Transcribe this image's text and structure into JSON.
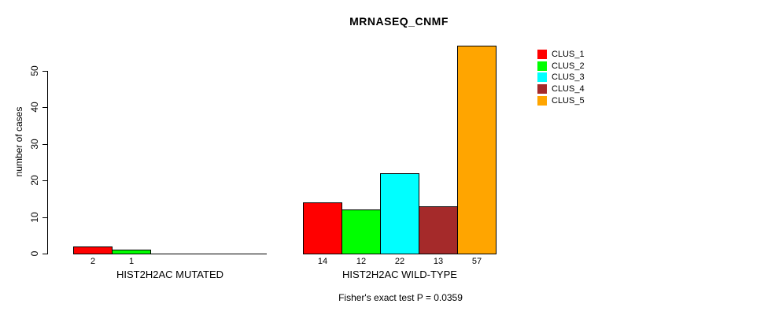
{
  "chart_data": {
    "type": "bar",
    "title": "MRNASEQ_CNMF",
    "ylabel": "number of cases",
    "xlabel": "",
    "yticks": [
      0,
      10,
      20,
      30,
      40,
      50
    ],
    "ylim": [
      0,
      50
    ],
    "grid": false,
    "legend_position": "top-right",
    "legend_entries": [
      {
        "label": "CLUS_1",
        "color": "#FF0000"
      },
      {
        "label": "CLUS_2",
        "color": "#00FF00"
      },
      {
        "label": "CLUS_3",
        "color": "#00FFFF"
      },
      {
        "label": "CLUS_4",
        "color": "#A52A2A"
      },
      {
        "label": "CLUS_5",
        "color": "#FFA500"
      }
    ],
    "series_colors": [
      "#FF0000",
      "#00FF00",
      "#00FFFF",
      "#A52A2A",
      "#FFA500"
    ],
    "groups": [
      {
        "label": "HIST2H2AC MUTATED",
        "values": [
          2,
          1,
          0,
          0,
          0
        ]
      },
      {
        "label": "HIST2H2AC WILD-TYPE",
        "values": [
          14,
          12,
          22,
          13,
          57
        ]
      }
    ],
    "bar_value_labels": [
      [
        "2",
        "1",
        "",
        "",
        ""
      ],
      [
        "14",
        "12",
        "22",
        "13",
        "57"
      ]
    ],
    "footnote": "Fisher's exact test P = 0.0359",
    "colors": {
      "axis": "#000000",
      "text": "#000000",
      "background": "#FFFFFF"
    }
  }
}
